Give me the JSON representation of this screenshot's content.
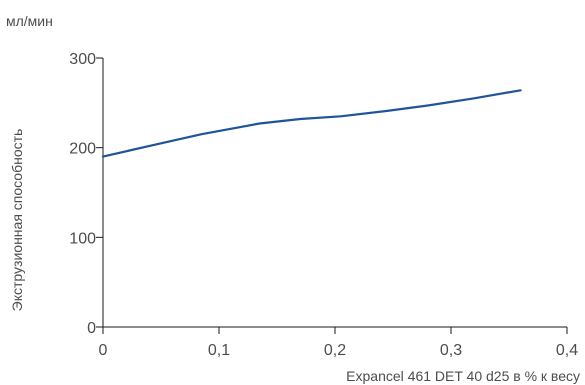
{
  "chart_data": {
    "type": "line",
    "unit_label": "мл/мин",
    "xlabel": "Expancel 461 DET 40 d25 в % к весу",
    "ylabel": "Экструзионная способность",
    "xlim": [
      0,
      0.4
    ],
    "ylim": [
      0,
      300
    ],
    "x_ticks": [
      0,
      0.1,
      0.2,
      0.3,
      0.4
    ],
    "x_tick_labels": [
      "0",
      "0,1",
      "0,2",
      "0,3",
      "0,4"
    ],
    "y_ticks": [
      0,
      100,
      200,
      300
    ],
    "y_tick_labels": [
      "0",
      "100",
      "200",
      "300"
    ],
    "grid": false,
    "series": [
      {
        "color": "#1f5596",
        "x": [
          0,
          0.04,
          0.085,
          0.135,
          0.17,
          0.205,
          0.245,
          0.28,
          0.32,
          0.36
        ],
        "y": [
          190,
          202,
          215,
          227,
          232,
          235,
          241,
          247,
          255,
          264
        ]
      }
    ]
  }
}
